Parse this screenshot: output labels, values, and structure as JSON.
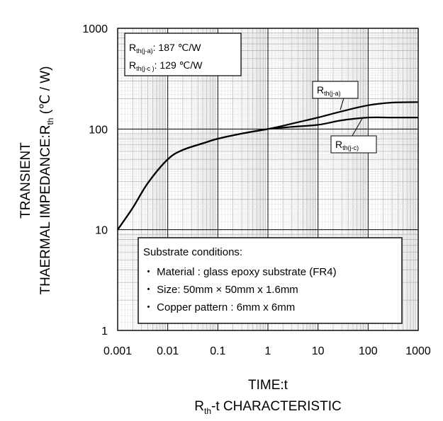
{
  "chart_data": {
    "type": "line",
    "x_scale": "log",
    "y_scale": "log",
    "xlim": [
      0.001,
      1000
    ],
    "ylim": [
      1,
      1000
    ],
    "x_ticks": [
      "0.001",
      "0.01",
      "0.1",
      "1",
      "10",
      "100",
      "1000"
    ],
    "y_ticks": [
      "1",
      "10",
      "100",
      "1000"
    ],
    "grid": true,
    "xlabel": "TIME:t",
    "ylabel": {
      "line1": "TRANSIENT",
      "line2_main": "THAERMAL IMPEDANCE:R",
      "line2_sub": "th",
      "line2_unit": " (℃ / W)"
    },
    "caption": {
      "main": "R",
      "sub": "th",
      "rest": "-t CHARACTERISTIC"
    },
    "series": [
      {
        "name": "Rth(j-a)",
        "label": {
          "main": "R",
          "sub": "th(j-a)"
        },
        "color": "#000000",
        "x": [
          0.001,
          0.002,
          0.004,
          0.01,
          0.02,
          0.05,
          0.1,
          0.3,
          1,
          3,
          10,
          30,
          100,
          300,
          1000
        ],
        "y": [
          10,
          16.5,
          29,
          50,
          62,
          72,
          80,
          90,
          100,
          113,
          130,
          150,
          172,
          183,
          185
        ]
      },
      {
        "name": "Rth(j-c)",
        "label": {
          "main": "R",
          "sub": "th(j-c)"
        },
        "color": "#000000",
        "x": [
          0.001,
          0.002,
          0.004,
          0.01,
          0.02,
          0.05,
          0.1,
          0.3,
          1,
          3,
          10,
          30,
          100,
          300,
          1000
        ],
        "y": [
          10,
          16.5,
          29,
          50,
          62,
          72,
          80,
          90,
          100,
          105,
          110,
          122,
          130,
          130,
          130
        ]
      }
    ],
    "annotations": {
      "values": [
        {
          "main": "R",
          "sub": "th(j-a)",
          "text": ":  187 ℃/W"
        },
        {
          "main": "R",
          "sub": "th(j-c )",
          "text": ": 129 ℃/W"
        }
      ],
      "substrate": {
        "title": "Substrate conditions:",
        "items": [
          "・ Material : glass epoxy substrate (FR4)",
          "・ Size: 50mm × 50mm x 1.6mm",
          "・ Copper pattern : 6mm x 6mm"
        ]
      }
    }
  }
}
